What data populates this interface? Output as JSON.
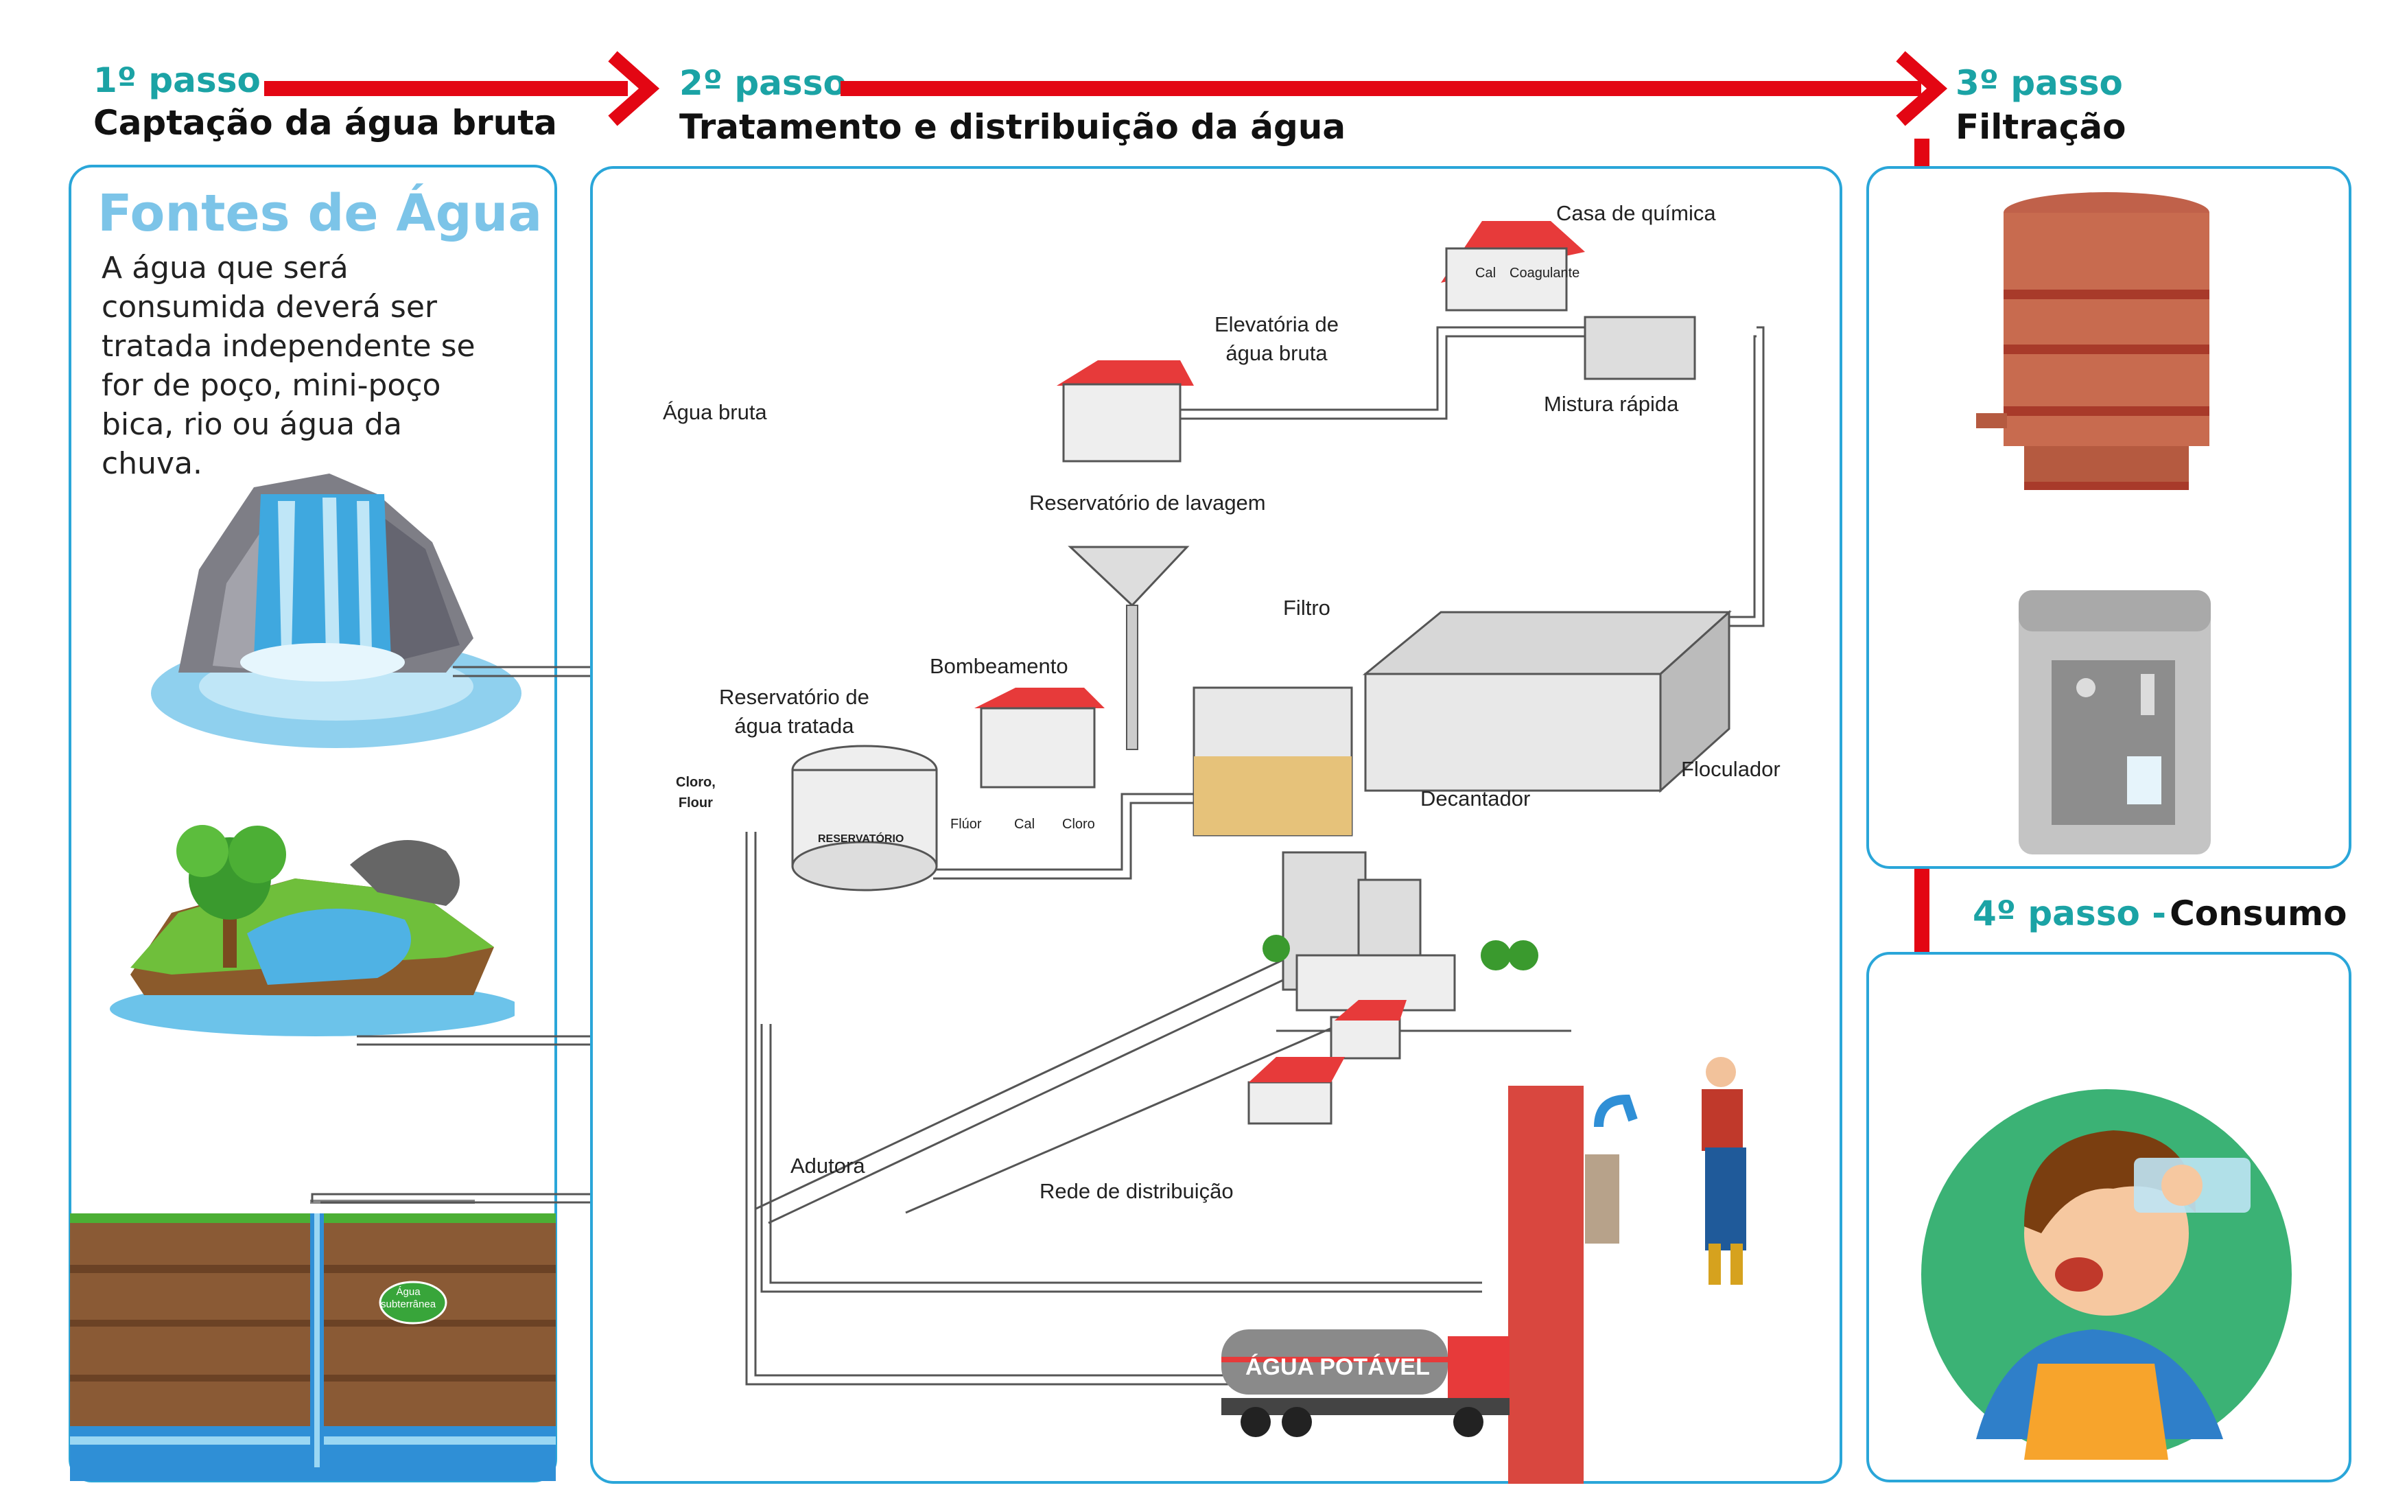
{
  "steps": [
    {
      "number": "1º passo",
      "title": "Captação da água bruta"
    },
    {
      "number": "2º passo",
      "title": "Tratamento e distribuição da água"
    },
    {
      "number": "3º passo",
      "title": "Filtração"
    },
    {
      "number": "4º passo -",
      "title": "Consumo"
    }
  ],
  "sources": {
    "heading": "Fontes de Água",
    "text_lines": [
      "A água que será",
      "consumida deverá ser",
      "tratada independente se",
      "for de poço, mini-poço",
      "bica, rio ou água da",
      "chuva."
    ],
    "underground_label": [
      "Água",
      "subterrânea"
    ]
  },
  "treatment": {
    "casa_quimica": "Casa de química",
    "cal": "Cal",
    "coagulante": "Coagulante",
    "elevatoria": [
      "Elevatória de",
      "água bruta"
    ],
    "mistura": "Mistura rápida",
    "agua_bruta": "Água bruta",
    "reservatorio_lavagem": "Reservatório de lavagem",
    "filtro": "Filtro",
    "bombeamento": "Bombeamento",
    "reservatorio_tratada": [
      "Reservatório de",
      "água tratada"
    ],
    "cloro_flour": [
      "Cloro,",
      "Flour"
    ],
    "reservatorio_tank": "RESERVATÓRIO",
    "fluor": "Flúor",
    "cal2": "Cal",
    "cloro": "Cloro",
    "floculador": "Floculador",
    "decantador": "Decantador",
    "adutora": "Adutora",
    "rede": "Rede de distribuição",
    "truck": "ÁGUA POTÁVEL"
  },
  "colors": {
    "accent": "#1ba3a5",
    "arrow": "#e30613",
    "panel_border": "#2aa6d9",
    "heading_blue": "#7cc4e8"
  }
}
